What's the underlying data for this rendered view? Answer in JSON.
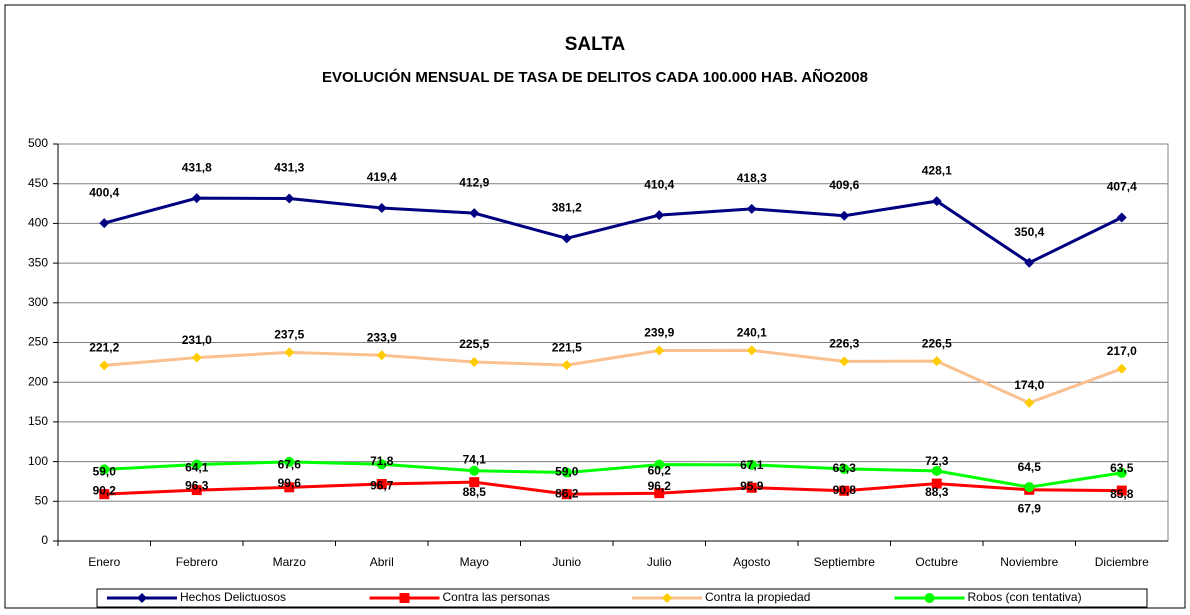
{
  "chart_data": {
    "type": "line",
    "title": "SALTA",
    "subtitle": "EVOLUCIÓN MENSUAL DE TASA DE DELITOS CADA 100.000 HAB. AÑO2008",
    "categories": [
      "Enero",
      "Febrero",
      "Marzo",
      "Abril",
      "Mayo",
      "Junio",
      "Julio",
      "Agosto",
      "Septiembre",
      "Octubre",
      "Noviembre",
      "Diciembre"
    ],
    "series": [
      {
        "name": "Hechos Delictuosos",
        "color": "#000080",
        "marker": "diamond",
        "values": [
          400.4,
          431.8,
          431.3,
          419.4,
          412.9,
          381.2,
          410.4,
          418.3,
          409.6,
          428.1,
          350.4,
          407.4
        ],
        "value_labels": [
          "400,4",
          "431,8",
          "431,3",
          "419,4",
          "412,9",
          "381,2",
          "410,4",
          "418,3",
          "409,6",
          "428,1",
          "350,4",
          "407,4"
        ]
      },
      {
        "name": "Contra las personas",
        "color": "#ff0000",
        "marker": "square",
        "values": [
          59.0,
          64.1,
          67.6,
          71.8,
          74.1,
          59.0,
          60.2,
          67.1,
          63.3,
          72.3,
          64.5,
          63.5
        ],
        "value_labels": [
          "59,0",
          "64,1",
          "67,6",
          "71,8",
          "74,1",
          "59,0",
          "60,2",
          "67,1",
          "63,3",
          "72,3",
          "64,5",
          "63,5"
        ]
      },
      {
        "name": "Contra la propiedad",
        "color": "#fac090",
        "marker": "diamond",
        "values": [
          221.2,
          231.0,
          237.5,
          233.9,
          225.5,
          221.5,
          239.9,
          240.1,
          226.3,
          226.5,
          174.0,
          217.0
        ],
        "value_labels": [
          "221,2",
          "231,0",
          "237,5",
          "233,9",
          "225,5",
          "221,5",
          "239,9",
          "240,1",
          "226,3",
          "226,5",
          "174,0",
          "217,0"
        ]
      },
      {
        "name": "Robos (con tentativa)",
        "color": "#00ff00",
        "marker": "circle",
        "values": [
          90.2,
          96.3,
          99.6,
          96.7,
          88.5,
          86.2,
          96.2,
          95.9,
          90.8,
          88.3,
          67.9,
          85.8
        ],
        "value_labels": [
          "90,2",
          "96,3",
          "99,6",
          "96,7",
          "88,5",
          "86,2",
          "96,2",
          "95,9",
          "90,8",
          "88,3",
          "67,9",
          "85,8"
        ]
      }
    ],
    "ylim": [
      0,
      500
    ],
    "yticks": [
      0,
      50,
      100,
      150,
      200,
      250,
      300,
      350,
      400,
      450,
      500
    ],
    "grid": true,
    "legend": "bottom"
  }
}
